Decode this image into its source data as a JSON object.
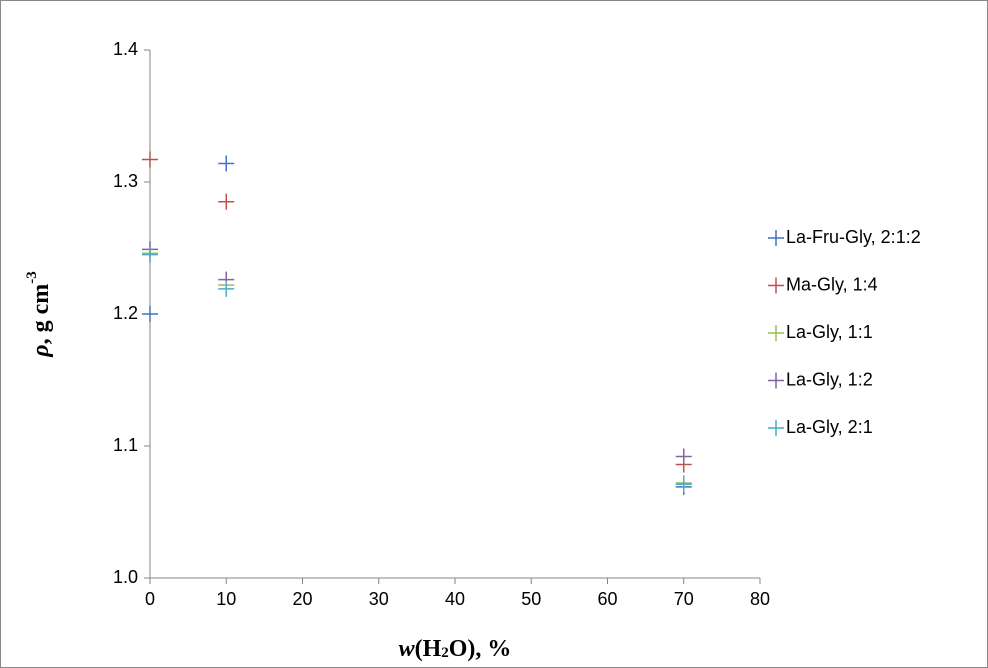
{
  "chart_data": {
    "type": "scatter",
    "xlabel_parts": [
      "w",
      "(H",
      "2",
      "O), %"
    ],
    "ylabel_parts": [
      "ρ",
      ", g cm",
      "-3"
    ],
    "xlim": [
      0,
      80
    ],
    "xticks": [
      0,
      10,
      20,
      30,
      40,
      50,
      60,
      70,
      80
    ],
    "ylim": [
      1.0,
      1.4
    ],
    "yticks": [
      {
        "value": 1.0,
        "label": "1.0"
      },
      1.1,
      1.2,
      1.3,
      1.4
    ],
    "grid": false,
    "legend": "right",
    "series": [
      {
        "name": "La-Fru-Gly, 2:1:2",
        "color": "#4472c4",
        "x": [
          0,
          10,
          70
        ],
        "values": [
          1.2,
          1.314,
          1.069
        ]
      },
      {
        "name": "Ma-Gly, 1:4",
        "color": "#c0504d",
        "x": [
          0,
          10,
          70
        ],
        "values": [
          1.317,
          1.285,
          1.086
        ]
      },
      {
        "name": "La-Gly, 1:1",
        "color": "#9bbb59",
        "x": [
          0,
          10,
          70
        ],
        "values": [
          1.246,
          1.222,
          1.072
        ]
      },
      {
        "name": "La-Gly, 1:2",
        "color": "#8064a2",
        "x": [
          0,
          10,
          70
        ],
        "values": [
          1.249,
          1.226,
          1.092
        ]
      },
      {
        "name": "La-Gly, 2:1",
        "color": "#4bacc6",
        "x": [
          0,
          10,
          70
        ],
        "values": [
          1.245,
          1.219,
          1.071
        ]
      }
    ]
  }
}
